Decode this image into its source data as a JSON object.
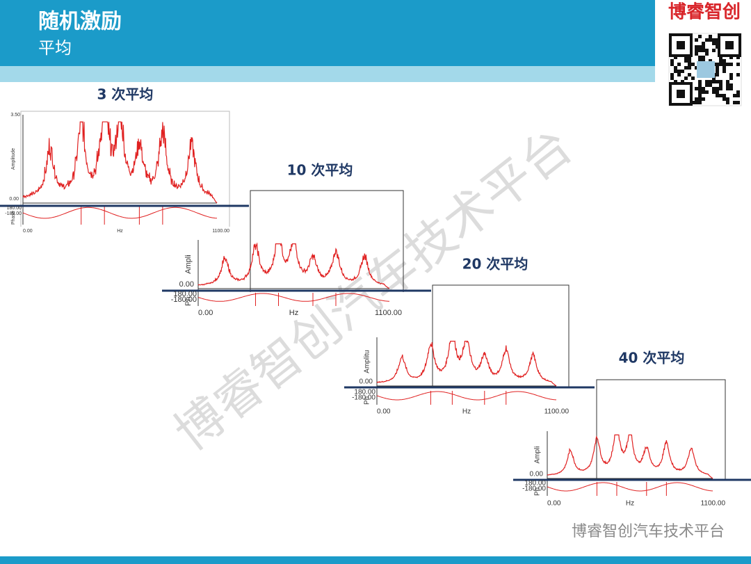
{
  "header": {
    "title": "随机激励",
    "subtitle": "平均",
    "brand": "博睿智创"
  },
  "watermark": "博睿智创汽车技术平台",
  "footer": "博睿智创汽车技术平台",
  "plots": [
    {
      "title": "3 次平均",
      "y_top": "3.50",
      "y_zero": "0.00",
      "y_label": "Amplitude",
      "phase_top": "180.00",
      "phase_bottom": "-180.00",
      "phase_label": "Phase",
      "x_start": "0.00",
      "x_label": "Hz",
      "x_end": "1100.00"
    },
    {
      "title": "10 次平均",
      "y_zero": "0.00",
      "y_label": "Ampli",
      "phase_top": "180.00",
      "phase_bottom": "-180.00",
      "phase_label": "Ph",
      "x_start": "0.00",
      "x_label": "Hz",
      "x_end": "1100.00"
    },
    {
      "title": "20 次平均",
      "y_zero": "0.00",
      "y_label": "Amplitu",
      "phase_top": "180.00",
      "phase_bottom": "-180.00",
      "phase_label": "Ph",
      "x_start": "0.00",
      "x_label": "Hz",
      "x_end": "1100.00"
    },
    {
      "title": "40 次平均",
      "y_zero": "0.00",
      "y_label": "Ampli",
      "phase_top": "180.00",
      "phase_bottom": "-180.00",
      "phase_label": "Ph",
      "x_start": "0.00",
      "x_label": "Hz",
      "x_end": "1100.00"
    }
  ]
}
